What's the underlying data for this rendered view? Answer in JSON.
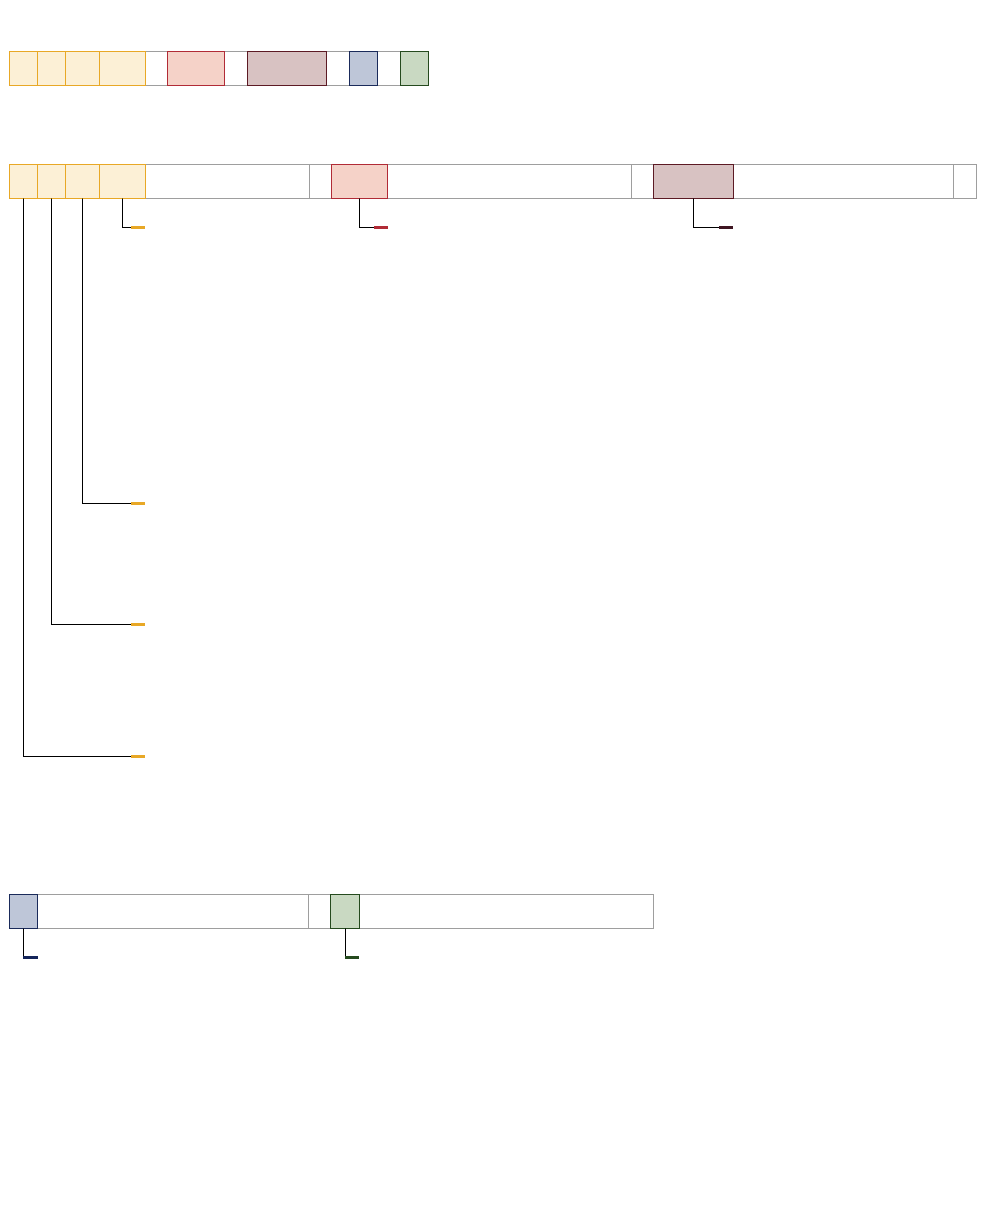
{
  "colors": {
    "background": "#ffffff",
    "connector": "#000000",
    "plain_fill": "#ffffff",
    "plain_stroke": "#9e9e9e",
    "orange_fill": "#fcf0d6",
    "orange_stroke": "#e8a826",
    "orange_marker": "#e8a826",
    "red_fill": "#f5d2c8",
    "red_stroke": "#b12b36",
    "red_marker": "#b12b36",
    "maroon_fill": "#d8c2c2",
    "maroon_stroke": "#5c1a24",
    "maroon_marker": "#3f1622",
    "blue_fill": "#bec6d8",
    "blue_stroke": "#1a2a5a",
    "blue_marker": "#14255a",
    "green_fill": "#c9d9c2",
    "green_stroke": "#254a1e",
    "green_marker": "#254a1e"
  },
  "rows": [
    {
      "name": "summary-row",
      "cells": [
        {
          "name": "summary-cell-orange-1",
          "color": "orange"
        },
        {
          "name": "summary-cell-orange-2",
          "color": "orange"
        },
        {
          "name": "summary-cell-orange-3",
          "color": "orange"
        },
        {
          "name": "summary-cell-orange-4",
          "color": "orange"
        },
        {
          "name": "summary-cell-plain-1",
          "color": "plain"
        },
        {
          "name": "summary-cell-red",
          "color": "red"
        },
        {
          "name": "summary-cell-plain-2",
          "color": "plain"
        },
        {
          "name": "summary-cell-maroon",
          "color": "maroon"
        },
        {
          "name": "summary-cell-plain-3",
          "color": "plain"
        },
        {
          "name": "summary-cell-blue",
          "color": "blue"
        },
        {
          "name": "summary-cell-plain-4",
          "color": "plain"
        },
        {
          "name": "summary-cell-green",
          "color": "green"
        }
      ]
    },
    {
      "name": "expanded-row-1",
      "cells": [
        {
          "name": "expanded-cell-orange-1",
          "color": "orange"
        },
        {
          "name": "expanded-cell-orange-2",
          "color": "orange"
        },
        {
          "name": "expanded-cell-orange-3",
          "color": "orange"
        },
        {
          "name": "expanded-cell-orange-4",
          "color": "orange"
        },
        {
          "name": "expanded-cell-plain-1",
          "color": "plain"
        },
        {
          "name": "expanded-cell-plain-2",
          "color": "plain"
        },
        {
          "name": "expanded-cell-red",
          "color": "red"
        },
        {
          "name": "expanded-cell-plain-3",
          "color": "plain"
        },
        {
          "name": "expanded-cell-plain-4",
          "color": "plain"
        },
        {
          "name": "expanded-cell-maroon",
          "color": "maroon"
        },
        {
          "name": "expanded-cell-plain-5",
          "color": "plain"
        },
        {
          "name": "expanded-cell-plain-6",
          "color": "plain"
        }
      ],
      "connectors": [
        {
          "name": "connector-orange-4",
          "from_cell": 3,
          "marker": "orange"
        },
        {
          "name": "connector-red",
          "from_cell": 6,
          "marker": "red"
        },
        {
          "name": "connector-maroon",
          "from_cell": 9,
          "marker": "maroon"
        },
        {
          "name": "connector-orange-3",
          "from_cell": 2,
          "marker": "orange"
        },
        {
          "name": "connector-orange-2",
          "from_cell": 1,
          "marker": "orange"
        },
        {
          "name": "connector-orange-1",
          "from_cell": 0,
          "marker": "orange"
        }
      ]
    },
    {
      "name": "expanded-row-2",
      "cells": [
        {
          "name": "expanded2-cell-blue",
          "color": "blue"
        },
        {
          "name": "expanded2-cell-plain-1",
          "color": "plain"
        },
        {
          "name": "expanded2-cell-plain-2",
          "color": "plain"
        },
        {
          "name": "expanded2-cell-green",
          "color": "green"
        },
        {
          "name": "expanded2-cell-plain-3",
          "color": "plain"
        }
      ],
      "connectors": [
        {
          "name": "connector-blue",
          "from_cell": 0,
          "marker": "blue"
        },
        {
          "name": "connector-green",
          "from_cell": 3,
          "marker": "green"
        }
      ]
    }
  ]
}
